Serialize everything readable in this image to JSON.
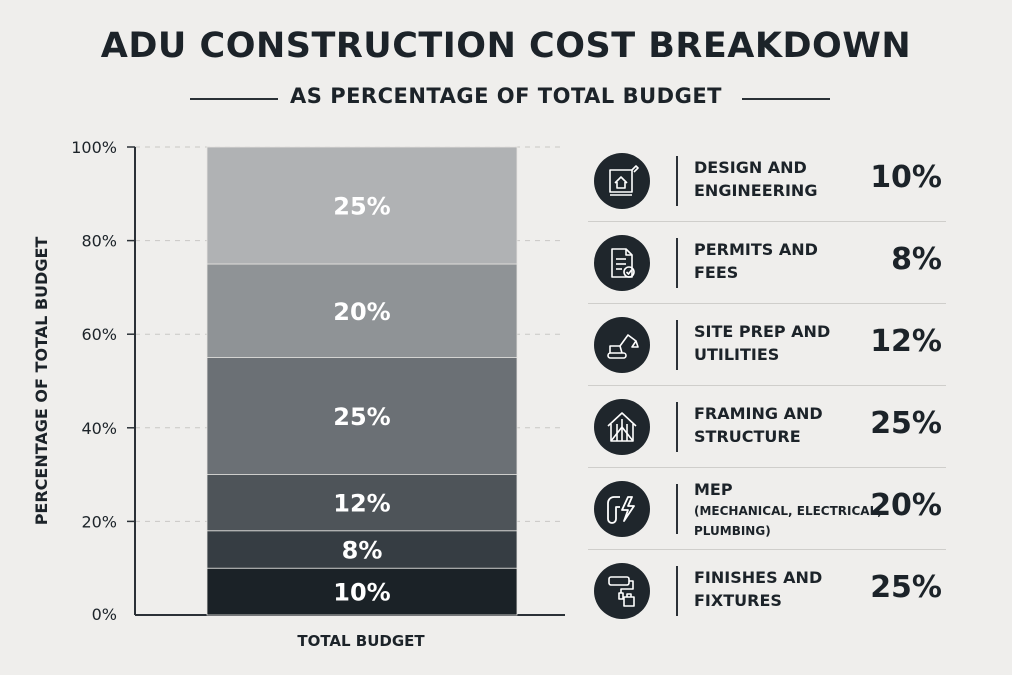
{
  "header": {
    "title": "ADU CONSTRUCTION COST BREAKDOWN",
    "subtitle": "AS PERCENTAGE OF TOTAL BUDGET"
  },
  "chart_data": {
    "type": "bar",
    "stacked": true,
    "title": "ADU CONSTRUCTION COST BREAKDOWN",
    "subtitle": "AS PERCENTAGE OF TOTAL BUDGET",
    "xlabel": "TOTAL BUDGET",
    "ylabel": "PERCENTAGE OF TOTAL BUDGET",
    "ylim": [
      0,
      100
    ],
    "yticks": [
      "0%",
      "20%",
      "40%",
      "60%",
      "80%",
      "100%"
    ],
    "grid": true,
    "categories": [
      "TOTAL BUDGET"
    ],
    "series": [
      {
        "name": "DESIGN AND ENGINEERING",
        "value": 10,
        "label": "10%",
        "color": "#1b2227"
      },
      {
        "name": "PERMITS AND FEES",
        "value": 8,
        "label": "8%",
        "color": "#363d43"
      },
      {
        "name": "SITE PREP AND UTILITIES",
        "value": 12,
        "label": "12%",
        "color": "#4e5459"
      },
      {
        "name": "FRAMING AND STRUCTURE",
        "value": 25,
        "label": "25%",
        "color": "#6b7075"
      },
      {
        "name": "MEP",
        "value": 20,
        "label": "20%",
        "color": "#8f9396"
      },
      {
        "name": "FINISHES AND FIXTURES",
        "value": 25,
        "label": "25%",
        "color": "#b0b2b4"
      }
    ]
  },
  "legend": {
    "items": [
      {
        "line1": "DESIGN AND",
        "line2": "ENGINEERING",
        "sub": "",
        "value": "10%",
        "icon": "blueprint-icon"
      },
      {
        "line1": "PERMITS AND",
        "line2": "FEES",
        "sub": "",
        "value": "8%",
        "icon": "document-check-icon"
      },
      {
        "line1": "SITE PREP AND",
        "line2": "UTILITIES",
        "sub": "",
        "value": "12%",
        "icon": "excavator-icon"
      },
      {
        "line1": "FRAMING AND",
        "line2": "STRUCTURE",
        "sub": "",
        "value": "25%",
        "icon": "house-frame-icon"
      },
      {
        "line1": "MEP",
        "line2": "",
        "sub": "(MECHANICAL, ELECTRICAL, PLUMBING)",
        "value": "20%",
        "icon": "pipe-bolt-icon"
      },
      {
        "line1": "FINISHES AND",
        "line2": "FIXTURES",
        "sub": "",
        "value": "25%",
        "icon": "paint-roller-icon"
      }
    ]
  }
}
